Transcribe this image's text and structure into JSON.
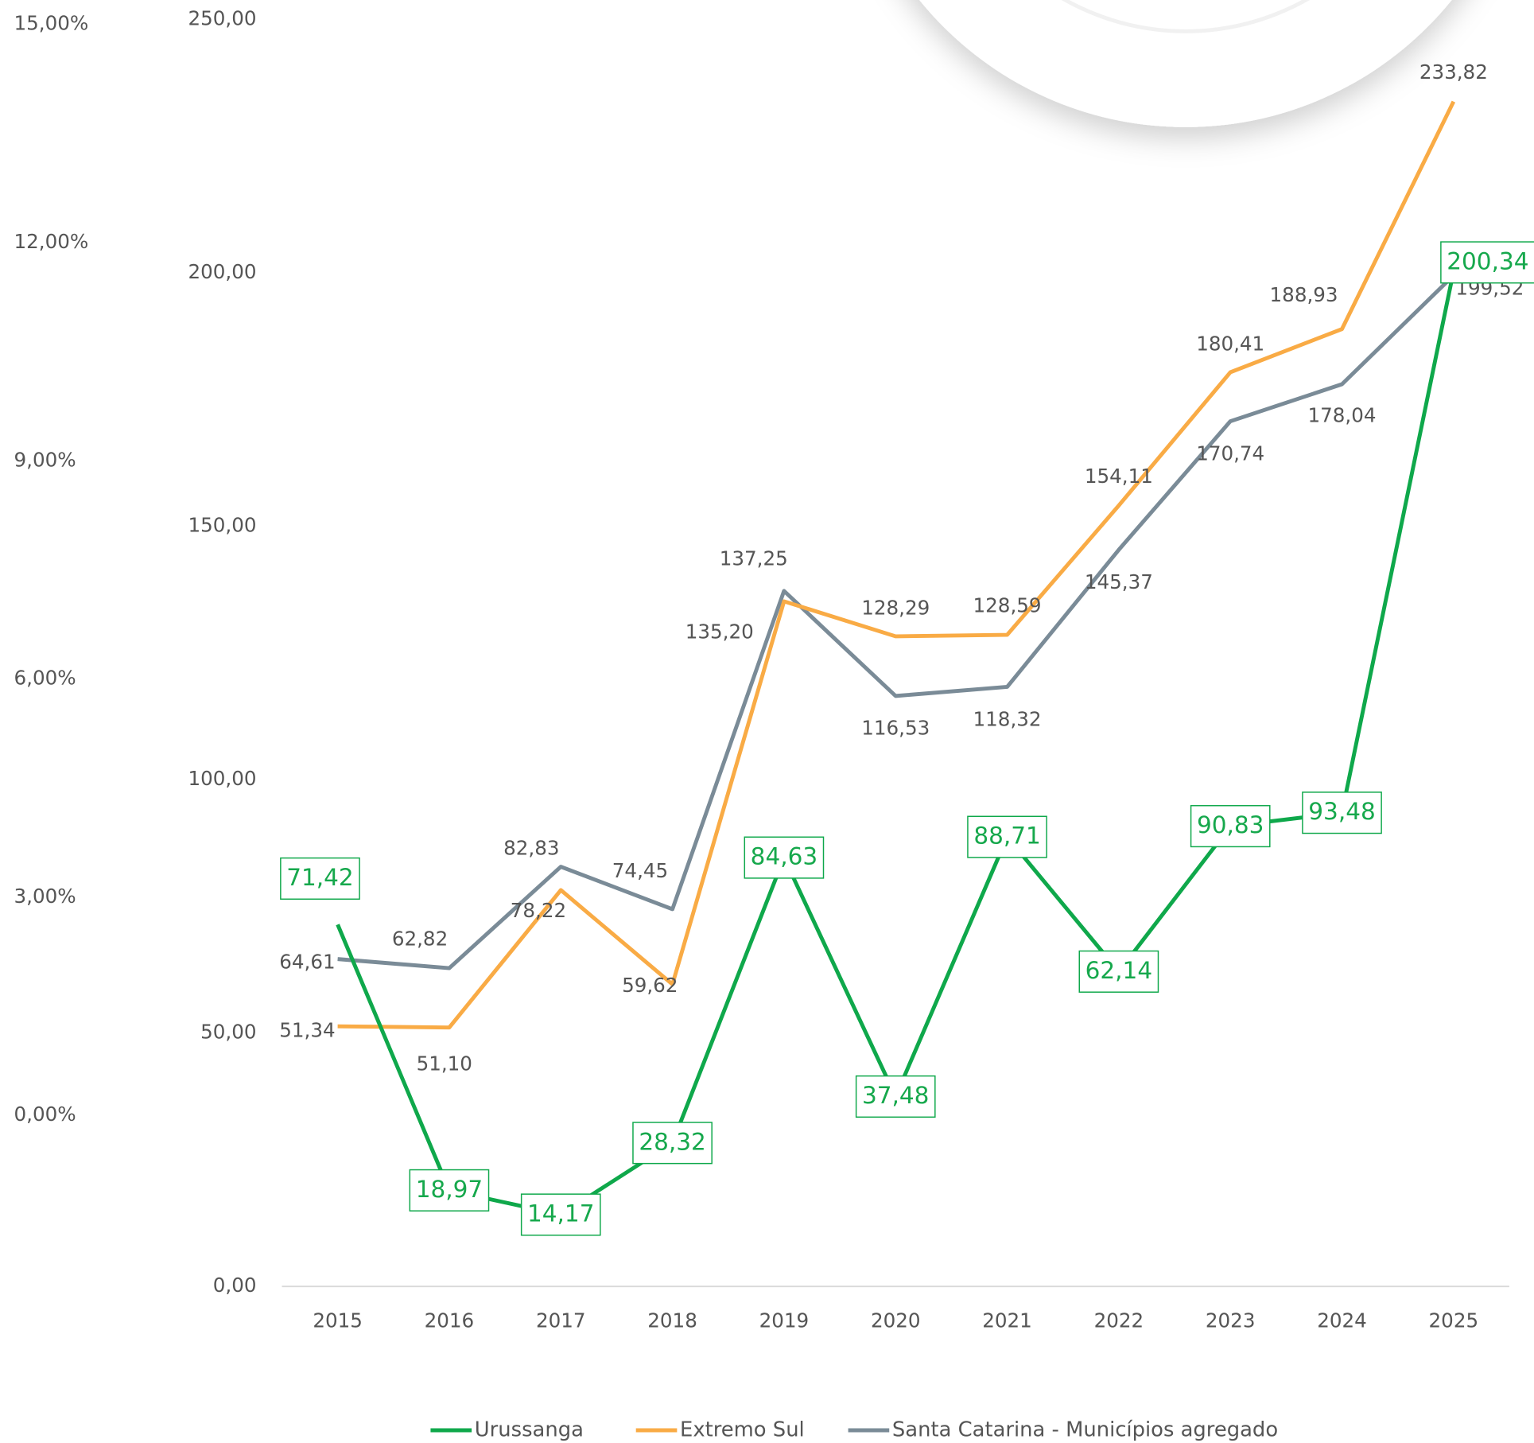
{
  "chart_data": {
    "type": "line",
    "categories": [
      "2015",
      "2016",
      "2017",
      "2018",
      "2019",
      "2020",
      "2021",
      "2022",
      "2023",
      "2024",
      "2025"
    ],
    "ylim": [
      0,
      250
    ],
    "yticks": [
      {
        "value": 0,
        "label": "0,00"
      },
      {
        "value": 50,
        "label": "50,00"
      },
      {
        "value": 100,
        "label": "100,00"
      },
      {
        "value": 150,
        "label": "150,00"
      },
      {
        "value": 200,
        "label": "200,00"
      },
      {
        "value": 250,
        "label": "250,00"
      }
    ],
    "y2lim": [
      0,
      15
    ],
    "y2ticks": [
      {
        "value": 0,
        "label": "0,00%"
      },
      {
        "value": 3,
        "label": "3,00%"
      },
      {
        "value": 6,
        "label": "6,00%"
      },
      {
        "value": 9,
        "label": "9,00%"
      },
      {
        "value": 12,
        "label": "12,00%"
      },
      {
        "value": 15,
        "label": "15,00%"
      }
    ],
    "legend": "bottom",
    "series": [
      {
        "name": "Urussanga",
        "color": "#0fa84b",
        "values": [
          71.42,
          18.97,
          14.17,
          28.32,
          84.63,
          37.48,
          88.71,
          62.14,
          90.83,
          93.48,
          200.34
        ],
        "value_labels": [
          "71,42",
          "18,97",
          "14,17",
          "28,32",
          "84,63",
          "37,48",
          "88,71",
          "62,14",
          "90,83",
          "93,48",
          "200,34"
        ]
      },
      {
        "name": "Extremo Sul",
        "color": "#f9ab45",
        "values": [
          51.34,
          51.1,
          78.22,
          59.62,
          135.2,
          128.29,
          128.59,
          154.11,
          180.41,
          188.93,
          233.82
        ],
        "value_labels": [
          "51,34",
          "51,10",
          "78,22",
          "59,62",
          "135,20",
          "128,29",
          "128,59",
          "154,11",
          "180,41",
          "188,93",
          "233,82"
        ]
      },
      {
        "name": "Santa Catarina - Municípios agregado",
        "color": "#7a8b97",
        "values": [
          64.61,
          62.82,
          82.83,
          74.45,
          137.25,
          116.53,
          118.32,
          145.37,
          170.74,
          178.04,
          199.52
        ],
        "value_labels": [
          "64,61",
          "62,82",
          "82,83",
          "74,45",
          "137,25",
          "116,53",
          "118,32",
          "145,37",
          "170,74",
          "178,04",
          "199,52"
        ]
      }
    ]
  }
}
